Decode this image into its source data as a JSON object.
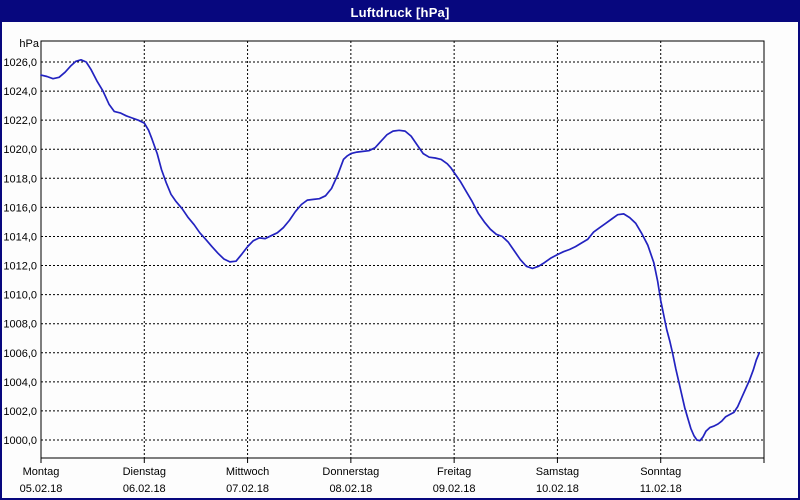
{
  "window": {
    "title": "Luftdruck [hPa]"
  },
  "colors": {
    "title_bg": "#07077e",
    "title_text": "#ffffff",
    "window_border": "#07077e",
    "plot_bg": "#fdfdfd",
    "plot_border": "#000000",
    "grid": "#000000",
    "axis_text": "#000000",
    "series_line": "#2323c0"
  },
  "chart_data": {
    "type": "line",
    "title": "Luftdruck [hPa]",
    "ylabel": "hPa",
    "grid": "dashed",
    "legend": "none",
    "y_axis": {
      "label": "hPa",
      "min": 1000,
      "max": 1026,
      "step": 2,
      "tick_labels": [
        "1026,0",
        "1024,0",
        "1022,0",
        "1020,0",
        "1018,0",
        "1016,0",
        "1014,0",
        "1012,0",
        "1010,0",
        "1008,0",
        "1006,0",
        "1004,0",
        "1002,0",
        "1000,0"
      ]
    },
    "x_axis": {
      "hours_total": 168,
      "days": [
        {
          "weekday": "Montag",
          "date": "05.02.18"
        },
        {
          "weekday": "Dienstag",
          "date": "06.02.18"
        },
        {
          "weekday": "Mittwoch",
          "date": "07.02.18"
        },
        {
          "weekday": "Donnerstag",
          "date": "08.02.18"
        },
        {
          "weekday": "Freitag",
          "date": "09.02.18"
        },
        {
          "weekday": "Samstag",
          "date": "10.02.18"
        },
        {
          "weekday": "Sonntag",
          "date": "11.02.18"
        }
      ]
    },
    "series": [
      {
        "name": "Luftdruck",
        "unit": "hPa",
        "points": [
          [
            0.0,
            1025.1
          ],
          [
            1.4,
            1025.0
          ],
          [
            2.8,
            1024.85
          ],
          [
            4.2,
            1024.95
          ],
          [
            5.6,
            1025.3
          ],
          [
            7.0,
            1025.75
          ],
          [
            8.1,
            1026.05
          ],
          [
            9.3,
            1026.15
          ],
          [
            10.5,
            1026.0
          ],
          [
            11.6,
            1025.5
          ],
          [
            13.0,
            1024.7
          ],
          [
            14.4,
            1024.0
          ],
          [
            15.8,
            1023.1
          ],
          [
            17.0,
            1022.6
          ],
          [
            18.4,
            1022.5
          ],
          [
            19.8,
            1022.3
          ],
          [
            21.2,
            1022.15
          ],
          [
            22.6,
            1022.0
          ],
          [
            24.0,
            1021.8
          ],
          [
            25.0,
            1021.3
          ],
          [
            25.8,
            1020.7
          ],
          [
            27.0,
            1019.7
          ],
          [
            28.0,
            1018.6
          ],
          [
            29.1,
            1017.7
          ],
          [
            30.2,
            1016.9
          ],
          [
            31.4,
            1016.4
          ],
          [
            32.8,
            1015.9
          ],
          [
            34.2,
            1015.3
          ],
          [
            35.6,
            1014.8
          ],
          [
            36.9,
            1014.25
          ],
          [
            38.3,
            1013.8
          ],
          [
            39.7,
            1013.3
          ],
          [
            41.1,
            1012.85
          ],
          [
            42.5,
            1012.45
          ],
          [
            43.9,
            1012.25
          ],
          [
            45.3,
            1012.3
          ],
          [
            46.7,
            1012.8
          ],
          [
            48.0,
            1013.3
          ],
          [
            49.3,
            1013.7
          ],
          [
            50.7,
            1013.9
          ],
          [
            52.1,
            1013.85
          ],
          [
            53.5,
            1014.05
          ],
          [
            54.9,
            1014.25
          ],
          [
            56.3,
            1014.6
          ],
          [
            57.7,
            1015.1
          ],
          [
            59.1,
            1015.7
          ],
          [
            60.5,
            1016.2
          ],
          [
            61.9,
            1016.5
          ],
          [
            63.3,
            1016.55
          ],
          [
            64.7,
            1016.6
          ],
          [
            66.1,
            1016.8
          ],
          [
            67.5,
            1017.3
          ],
          [
            68.9,
            1018.2
          ],
          [
            70.3,
            1019.3
          ],
          [
            71.2,
            1019.55
          ],
          [
            72.0,
            1019.7
          ],
          [
            73.4,
            1019.8
          ],
          [
            74.8,
            1019.85
          ],
          [
            76.2,
            1019.9
          ],
          [
            77.6,
            1020.1
          ],
          [
            79.0,
            1020.55
          ],
          [
            80.4,
            1021.0
          ],
          [
            81.8,
            1021.25
          ],
          [
            83.2,
            1021.3
          ],
          [
            84.6,
            1021.25
          ],
          [
            86.0,
            1020.9
          ],
          [
            87.4,
            1020.3
          ],
          [
            88.8,
            1019.7
          ],
          [
            90.2,
            1019.45
          ],
          [
            91.6,
            1019.4
          ],
          [
            93.0,
            1019.3
          ],
          [
            94.4,
            1019.0
          ],
          [
            95.3,
            1018.7
          ],
          [
            96.0,
            1018.4
          ],
          [
            97.4,
            1017.8
          ],
          [
            98.8,
            1017.1
          ],
          [
            100.2,
            1016.4
          ],
          [
            101.6,
            1015.6
          ],
          [
            103.0,
            1015.0
          ],
          [
            104.4,
            1014.5
          ],
          [
            105.8,
            1014.15
          ],
          [
            107.2,
            1014.0
          ],
          [
            108.6,
            1013.6
          ],
          [
            110.0,
            1013.0
          ],
          [
            111.4,
            1012.4
          ],
          [
            112.8,
            1011.95
          ],
          [
            114.2,
            1011.8
          ],
          [
            115.6,
            1011.95
          ],
          [
            117.0,
            1012.2
          ],
          [
            118.4,
            1012.5
          ],
          [
            120.0,
            1012.75
          ],
          [
            121.4,
            1012.95
          ],
          [
            122.8,
            1013.1
          ],
          [
            124.2,
            1013.3
          ],
          [
            125.6,
            1013.55
          ],
          [
            127.0,
            1013.8
          ],
          [
            128.4,
            1014.3
          ],
          [
            129.8,
            1014.6
          ],
          [
            131.2,
            1014.9
          ],
          [
            132.6,
            1015.2
          ],
          [
            134.0,
            1015.5
          ],
          [
            135.4,
            1015.55
          ],
          [
            136.8,
            1015.3
          ],
          [
            138.2,
            1014.9
          ],
          [
            139.6,
            1014.2
          ],
          [
            141.0,
            1013.4
          ],
          [
            142.4,
            1012.2
          ],
          [
            143.3,
            1010.9
          ],
          [
            144.0,
            1009.6
          ],
          [
            144.7,
            1008.6
          ],
          [
            145.4,
            1007.6
          ],
          [
            146.1,
            1006.8
          ],
          [
            146.8,
            1005.9
          ],
          [
            147.5,
            1004.9
          ],
          [
            148.2,
            1004.0
          ],
          [
            148.9,
            1003.1
          ],
          [
            149.6,
            1002.2
          ],
          [
            150.3,
            1001.5
          ],
          [
            151.0,
            1000.8
          ],
          [
            151.7,
            1000.3
          ],
          [
            152.4,
            1000.0
          ],
          [
            153.1,
            999.95
          ],
          [
            153.8,
            1000.2
          ],
          [
            154.5,
            1000.6
          ],
          [
            155.4,
            1000.85
          ],
          [
            156.3,
            1000.95
          ],
          [
            157.3,
            1001.1
          ],
          [
            158.2,
            1001.3
          ],
          [
            159.1,
            1001.6
          ],
          [
            160.0,
            1001.75
          ],
          [
            161.0,
            1001.9
          ],
          [
            161.9,
            1002.3
          ],
          [
            162.8,
            1002.9
          ],
          [
            163.7,
            1003.5
          ],
          [
            164.6,
            1004.1
          ],
          [
            165.5,
            1004.8
          ],
          [
            166.2,
            1005.5
          ],
          [
            166.9,
            1006.0
          ]
        ]
      }
    ]
  }
}
